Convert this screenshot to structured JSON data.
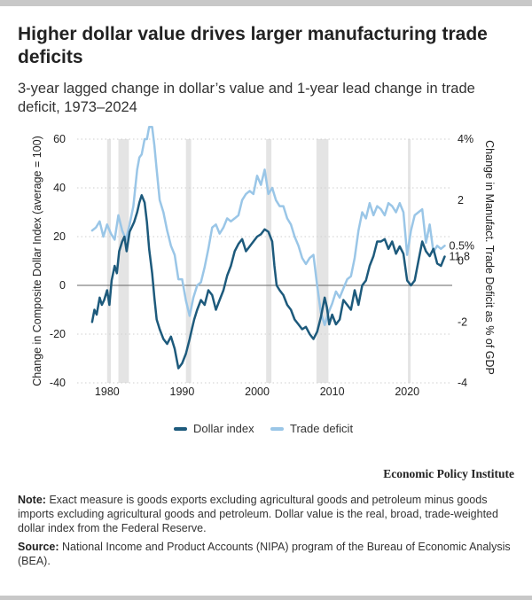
{
  "title": "Higher dollar value drives larger manufacturing trade deficits",
  "subtitle": "3-year lagged change in dollar’s value and 1-year lead change in trade deficit, 1973–2024",
  "colors": {
    "dollar": "#1d5a7c",
    "trade": "#9ac6e7",
    "recession": "#e4e4e4",
    "gridline": "#cfcfcf",
    "zeroline": "#666666"
  },
  "legend": {
    "dollar": "Dollar index",
    "trade": "Trade deficit"
  },
  "brand": "Economic Policy Institute",
  "note": {
    "label": "Note:",
    "text": "Exact measure is goods exports excluding agricultural goods and petroleum minus goods imports excluding agricultural goods and petroleum. Dollar value is the real, broad, trade-weighted dollar index from the Federal Reserve."
  },
  "source": {
    "label": "Source:",
    "text": "National Income and Product Accounts (NIPA) program of the Bureau of Economic Analysis (BEA)."
  },
  "chart_data": {
    "type": "line",
    "title": "Higher dollar value drives larger manufacturing trade deficits",
    "xlabel": "",
    "ylabel": "Change in Composite Dollar Index (average = 100)",
    "y2label": "Change in Manufact. Trade Deficit as % of GDP",
    "xlim": [
      1976,
      2026
    ],
    "ylim": [
      -40,
      60
    ],
    "y2lim": [
      -4,
      4
    ],
    "xticks": [
      1980,
      1990,
      2000,
      2010,
      2020
    ],
    "yticks": [
      -40,
      -20,
      0,
      20,
      40,
      60
    ],
    "y2ticks": [
      -4,
      -2,
      0,
      2,
      4
    ],
    "y2ticklabels": [
      "-4",
      "-2",
      "0",
      "2",
      "4%"
    ],
    "recessions": [
      [
        1980.0,
        1980.5
      ],
      [
        1981.5,
        1982.9
      ],
      [
        1990.5,
        1991.2
      ],
      [
        2001.2,
        2001.9
      ],
      [
        2007.9,
        2009.5
      ],
      [
        2020.1,
        2020.4
      ]
    ],
    "series": [
      {
        "name": "Dollar index",
        "axis": "left",
        "end_label": "11.8",
        "x": [
          1978.0,
          1978.3,
          1978.6,
          1979.0,
          1979.3,
          1979.6,
          1980.0,
          1980.3,
          1980.6,
          1981.0,
          1981.3,
          1981.6,
          1982.0,
          1982.3,
          1982.6,
          1983.0,
          1983.3,
          1983.6,
          1984.0,
          1984.3,
          1984.6,
          1985.0,
          1985.3,
          1985.6,
          1986.0,
          1986.3,
          1986.6,
          1987.0,
          1987.5,
          1988.0,
          1988.5,
          1989.0,
          1989.5,
          1990.0,
          1990.5,
          1991.0,
          1991.3,
          1991.6,
          1992.0,
          1992.5,
          1993.0,
          1993.5,
          1994.0,
          1994.5,
          1995.0,
          1995.5,
          1996.0,
          1996.5,
          1997.0,
          1997.5,
          1998.0,
          1998.5,
          1999.0,
          1999.5,
          2000.0,
          2000.5,
          2001.0,
          2001.5,
          2002.0,
          2002.3,
          2002.6,
          2003.0,
          2003.5,
          2004.0,
          2004.5,
          2005.0,
          2005.5,
          2006.0,
          2006.5,
          2007.0,
          2007.5,
          2008.0,
          2008.5,
          2009.0,
          2009.3,
          2009.6,
          2010.0,
          2010.5,
          2011.0,
          2011.5,
          2012.0,
          2012.5,
          2013.0,
          2013.5,
          2014.0,
          2014.5,
          2015.0,
          2015.5,
          2016.0,
          2016.5,
          2017.0,
          2017.5,
          2018.0,
          2018.5,
          2019.0,
          2019.5,
          2020.0,
          2020.5,
          2021.0,
          2021.5,
          2022.0,
          2022.5,
          2023.0,
          2023.5,
          2024.0,
          2024.5,
          2025.0
        ],
        "values": [
          -15,
          -10,
          -12,
          -5,
          -8,
          -6,
          -2,
          -8,
          2,
          8,
          5,
          14,
          18,
          20,
          14,
          22,
          24,
          26,
          30,
          34,
          37,
          34,
          26,
          15,
          5,
          -5,
          -14,
          -18,
          -22,
          -24,
          -21,
          -26,
          -34,
          -32,
          -28,
          -22,
          -18,
          -14,
          -10,
          -6,
          -8,
          -2,
          -4,
          -10,
          -6,
          -2,
          4,
          8,
          14,
          17,
          19,
          14,
          16,
          18,
          20,
          21,
          23,
          22,
          18,
          8,
          0,
          -2,
          -4,
          -8,
          -10,
          -14,
          -16,
          -18,
          -17,
          -20,
          -22,
          -19,
          -13,
          -5,
          -9,
          -16,
          -12,
          -16,
          -14,
          -6,
          -8,
          -10,
          -2,
          -8,
          0,
          2,
          8,
          12,
          18,
          18,
          19,
          15,
          18,
          13,
          16,
          13,
          2,
          0,
          2,
          10,
          18,
          14,
          12,
          15,
          9,
          8,
          11.8
        ]
      },
      {
        "name": "Trade deficit",
        "axis": "right",
        "end_label": "0.5%",
        "x": [
          1978.0,
          1978.5,
          1979.0,
          1979.5,
          1980.0,
          1980.5,
          1981.0,
          1981.5,
          1982.0,
          1982.5,
          1983.0,
          1983.5,
          1984.0,
          1984.3,
          1984.6,
          1985.0,
          1985.3,
          1985.6,
          1986.0,
          1986.3,
          1986.6,
          1987.0,
          1987.5,
          1988.0,
          1988.5,
          1989.0,
          1989.5,
          1990.0,
          1990.5,
          1991.0,
          1991.5,
          1992.0,
          1992.5,
          1993.0,
          1993.5,
          1994.0,
          1994.5,
          1995.0,
          1995.5,
          1996.0,
          1996.5,
          1997.0,
          1997.5,
          1998.0,
          1998.5,
          1999.0,
          1999.5,
          2000.0,
          2000.5,
          2001.0,
          2001.5,
          2002.0,
          2002.5,
          2003.0,
          2003.5,
          2004.0,
          2004.5,
          2005.0,
          2005.5,
          2006.0,
          2006.5,
          2007.0,
          2007.5,
          2008.0,
          2008.5,
          2009.0,
          2009.5,
          2010.0,
          2010.5,
          2011.0,
          2011.5,
          2012.0,
          2012.5,
          2013.0,
          2013.5,
          2014.0,
          2014.5,
          2015.0,
          2015.5,
          2016.0,
          2016.5,
          2017.0,
          2017.5,
          2018.0,
          2018.5,
          2019.0,
          2019.5,
          2020.0,
          2020.5,
          2021.0,
          2021.5,
          2022.0,
          2022.5,
          2023.0,
          2023.5,
          2024.0,
          2024.5,
          2025.0
        ],
        "values": [
          1.0,
          1.1,
          1.3,
          0.8,
          1.2,
          0.9,
          0.7,
          1.5,
          1.0,
          0.7,
          1.2,
          1.8,
          3.0,
          3.4,
          3.5,
          4.0,
          4.0,
          4.4,
          4.4,
          3.8,
          3.0,
          2.0,
          1.6,
          1.0,
          0.5,
          0.2,
          -0.6,
          -0.6,
          -1.3,
          -1.8,
          -1.2,
          -0.8,
          -0.7,
          -0.2,
          0.4,
          1.1,
          1.2,
          0.9,
          1.1,
          1.4,
          1.3,
          1.4,
          1.5,
          2.0,
          2.2,
          2.3,
          2.2,
          2.8,
          2.5,
          3.0,
          2.2,
          2.4,
          2.0,
          1.8,
          1.8,
          1.4,
          1.2,
          0.8,
          0.5,
          0.1,
          -0.1,
          0.1,
          0.2,
          -0.8,
          -1.7,
          -2.1,
          -1.7,
          -1.4,
          -1.0,
          -1.2,
          -0.9,
          -0.6,
          -0.5,
          0.1,
          1.0,
          1.6,
          1.4,
          1.9,
          1.5,
          1.8,
          1.7,
          1.5,
          1.9,
          1.8,
          1.6,
          1.9,
          1.6,
          0.2,
          1.0,
          1.5,
          1.6,
          1.7,
          0.6,
          1.2,
          0.3,
          0.5,
          0.4,
          0.5
        ]
      }
    ]
  }
}
